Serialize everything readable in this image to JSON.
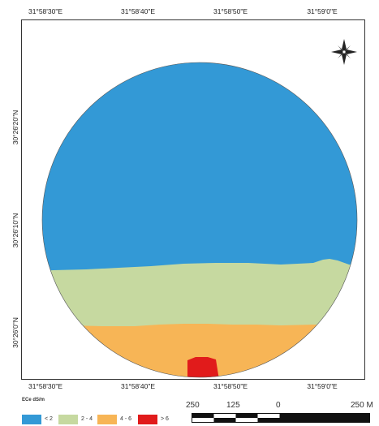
{
  "map": {
    "top_ticks": [
      "31°58'30\"E",
      "31°58'40\"E",
      "31°58'50\"E",
      "31°59'0\"E"
    ],
    "bottom_ticks": [
      "31°58'30\"E",
      "31°58'40\"E",
      "31°58'50\"E",
      "31°59'0\"E"
    ],
    "left_ticks": [
      "30°26'20\"N",
      "30°26'10\"N",
      "30°26'0\"N"
    ],
    "north_arrow_icon": "compass-rose-icon",
    "zones": [
      {
        "class": "< 2",
        "color": "#3399d6"
      },
      {
        "class": "2 - 4",
        "color": "#c6d9a0"
      },
      {
        "class": "4 - 6",
        "color": "#f7b556"
      },
      {
        "class": "> 6",
        "color": "#e11b1b"
      }
    ]
  },
  "legend": {
    "title": "ECe dS/m",
    "items": [
      {
        "label": "< 2",
        "color": "#3399d6"
      },
      {
        "label": "2 - 4",
        "color": "#c6d9a0"
      },
      {
        "label": "4 - 6",
        "color": "#f7b556"
      },
      {
        "label": "> 6",
        "color": "#e11b1b"
      }
    ]
  },
  "scale_bar": {
    "labels": [
      "250",
      "125",
      "0",
      "250 M"
    ]
  }
}
